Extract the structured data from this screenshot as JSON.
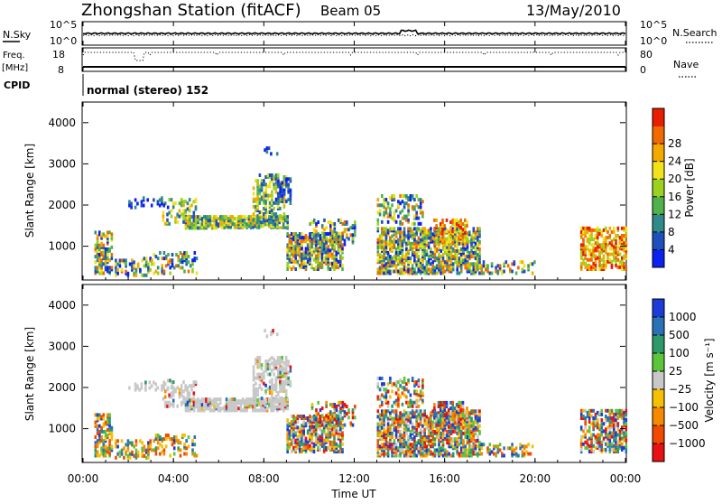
{
  "header": {
    "station": "Zhongshan Station (fitACF)",
    "beam": "Beam 05",
    "date": "13/May/2010"
  },
  "chart_data": [
    {
      "id": "nsky-panel",
      "type": "line",
      "left_label": "N.Sky",
      "right_label": "N.Search",
      "left_ticks": [
        "10^5",
        "10^0"
      ],
      "right_ticks": [
        "10^5",
        "10^0"
      ]
    },
    {
      "id": "freq-panel",
      "type": "line",
      "left_label_top": "Freq.",
      "left_label_bottom": "[MHz]",
      "left_ticks": [
        "18",
        "8"
      ],
      "right_label": "Nave",
      "right_ticks": [
        "80",
        "0"
      ],
      "cpid_label": "CPID",
      "cpid_text": "normal (stereo) 152"
    },
    {
      "id": "power-panel",
      "type": "heatmap",
      "ylabel": "Slant Range [km]",
      "yticks": [
        1000,
        2000,
        3000,
        4000
      ],
      "ylim": [
        180,
        4500
      ],
      "colorbar": {
        "label": "Power [dB]",
        "ticks": [
          "4",
          "8",
          "12",
          "16",
          "20",
          "24",
          "28"
        ],
        "colors": [
          "#0a22f0",
          "#1f4fbd",
          "#2f8a8a",
          "#4fb24a",
          "#9ad21f",
          "#f2e21a",
          "#f5a800",
          "#f06a00",
          "#e81e00"
        ]
      }
    },
    {
      "id": "velocity-panel",
      "type": "heatmap",
      "ylabel": "Slant Range [km]",
      "yticks": [
        1000,
        2000,
        3000,
        4000
      ],
      "ylim": [
        180,
        4500
      ],
      "xticks": [
        "00:00",
        "04:00",
        "08:00",
        "12:00",
        "16:00",
        "20:00",
        "00:00"
      ],
      "xlabel": "Time UT",
      "colorbar": {
        "label": "Velocity [m s⁻¹]",
        "ticks": [
          "1000",
          "500",
          "100",
          "25",
          "−25",
          "−100",
          "−500",
          "−1000"
        ],
        "colors": [
          "#1c3cd8",
          "#2a72b8",
          "#2e9a6a",
          "#5cc63a",
          "#c8c8c8",
          "#f5c000",
          "#f58a00",
          "#f04a00",
          "#e81010"
        ]
      }
    }
  ]
}
